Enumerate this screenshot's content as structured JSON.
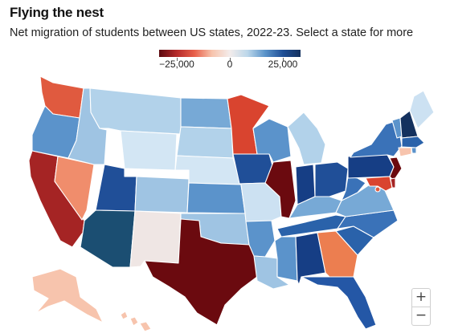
{
  "title": "Flying the nest",
  "subtitle": "Net migration of students between US states, 2022-23. Select a state for more",
  "legend": {
    "min": -40000,
    "max": 40000,
    "ticks": [
      {
        "value": -25000,
        "label": "−25,000"
      },
      {
        "value": 0,
        "label": "0"
      },
      {
        "value": 25000,
        "label": "25,000"
      }
    ],
    "colors": [
      "#5c0a10",
      "#b52a2a",
      "#e8604a",
      "#f7c4ad",
      "#f3eceb",
      "#bcd7ea",
      "#5a93c9",
      "#1f4f97",
      "#14315e"
    ]
  },
  "zoom": {
    "in_label": "+",
    "out_label": "−"
  },
  "states": {
    "WA": "#e05a3f",
    "OR": "#5b93cb",
    "CA": "#a52424",
    "NV": "#f08d6c",
    "ID": "#9fc4e3",
    "MT": "#b2d2ea",
    "WY": "#d3e6f4",
    "UT": "#204f98",
    "CO": "#9fc4e3",
    "AZ": "#1b4e72",
    "NM": "#efe6e4",
    "ND": "#77a9d6",
    "SD": "#b2d2ea",
    "NE": "#d3e6f4",
    "KS": "#5b93cb",
    "OK": "#9fc4e3",
    "TX": "#6b0a0f",
    "MN": "#d9442f",
    "IA": "#204f98",
    "MO": "#cce1f2",
    "AR": "#5b93cb",
    "LA": "#9fc4e3",
    "WI": "#5b93cb",
    "IL": "#6b0a0f",
    "MI": "#b2d2ea",
    "IN": "#163e85",
    "OH": "#204f98",
    "KY": "#77a9d6",
    "TN": "#2a62aa",
    "MS": "#5b93cb",
    "AL": "#163e85",
    "GA": "#ec7e50",
    "FL": "#2457a6",
    "SC": "#2a62aa",
    "NC": "#3a72b8",
    "VA": "#77a9d6",
    "WV": "#3a72b8",
    "PA": "#163e85",
    "NY": "#3a72b8",
    "VT": "#5b93cb",
    "NH": "#14315e",
    "ME": "#cce1f2",
    "MA": "#2a62aa",
    "CT": "#f7c4ad",
    "NJ": "#6b0a0f",
    "DE": "#a52424",
    "MD": "#d9442f",
    "RI": "#5b93cb",
    "DC": "#e05a3f",
    "AK": "#f7c4ad",
    "HI": "#f7c4ad"
  }
}
